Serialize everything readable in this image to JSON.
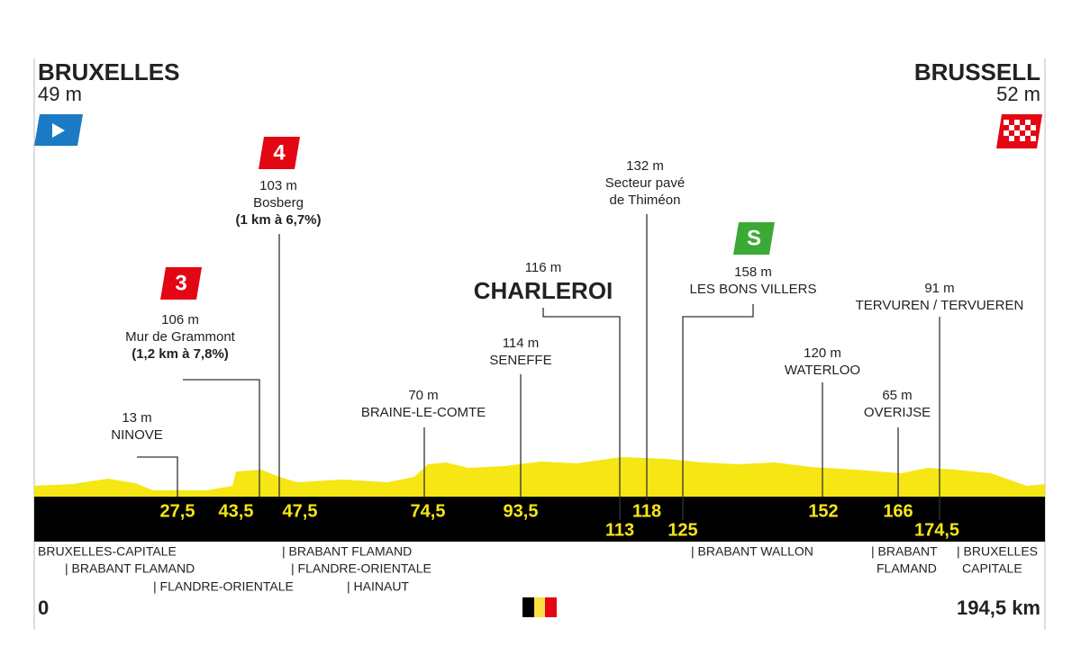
{
  "start": {
    "name": "BRUXELLES",
    "altitude": "49 m",
    "km": "0"
  },
  "finish": {
    "name": "BRUSSELL",
    "altitude": "52 m",
    "km": "194,5 km"
  },
  "points": [
    {
      "altitude": "13 m",
      "name": "NINOVE",
      "km": "27,5"
    },
    {
      "altitude": "106 m",
      "name": "Mur de Grammont",
      "detail": "(1,2 km à 7,8%)",
      "km": "43,5",
      "badge": "3"
    },
    {
      "altitude": "103 m",
      "name": "Bosberg",
      "detail": "(1 km à 6,7%)",
      "km": "47,5",
      "badge": "4"
    },
    {
      "altitude": "70 m",
      "name": "BRAINE-LE-COMTE",
      "km": "74,5"
    },
    {
      "altitude": "114 m",
      "name": "SENEFFE",
      "km": "93,5"
    },
    {
      "altitude": "116 m",
      "name": "CHARLEROI",
      "km": "113"
    },
    {
      "altitude": "132 m",
      "name": "Secteur pavé",
      "name2": "de Thiméon",
      "km": "118"
    },
    {
      "altitude": "158 m",
      "name": "LES BONS VILLERS",
      "km": "125",
      "badge": "S"
    },
    {
      "altitude": "120 m",
      "name": "WATERLOO",
      "km": "152"
    },
    {
      "altitude": "65 m",
      "name": "OVERIJSE",
      "km": "166"
    },
    {
      "altitude": "91 m",
      "name": "TERVUREN / TERVUEREN",
      "km": "174,5"
    }
  ],
  "regions": [
    "BRUXELLES-CAPITALE",
    "| BRABANT FLAMAND",
    "| FLANDRE-ORIENTALE",
    "| BRABANT FLAMAND",
    "| FLANDRE-ORIENTALE",
    "| HAINAUT",
    "| BRABANT WALLON",
    "| BRABANT",
    "FLAMAND",
    "| BRUXELLES",
    "CAPITALE"
  ]
}
